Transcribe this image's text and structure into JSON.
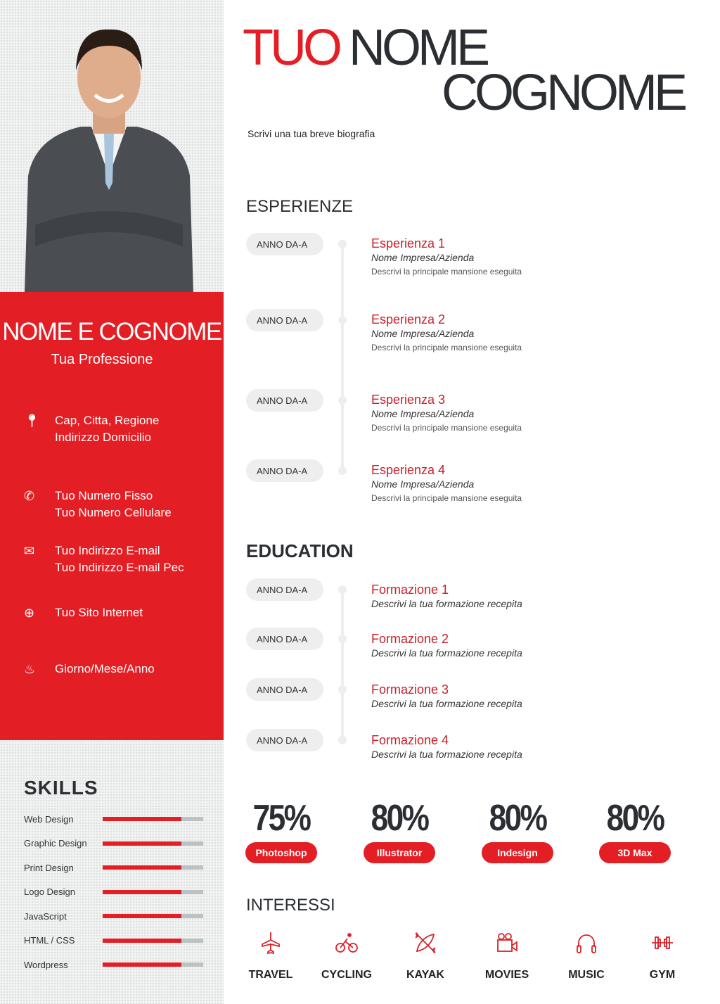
{
  "header": {
    "first": "TUO",
    "second": "NOME",
    "third": "COGNOME",
    "bio": "Scrivi una tua breve biografia"
  },
  "profile": {
    "name": "NOME E COGNOME",
    "profession": "Tua Professione",
    "contacts": [
      {
        "icon": "map-pin-icon",
        "lines": [
          "Cap, Citta, Regione",
          "Indirizzo Domicilio"
        ]
      },
      {
        "icon": "phone-icon",
        "lines": [
          "Tuo Numero Fisso",
          "Tuo Numero Cellulare"
        ]
      },
      {
        "icon": "envelope-icon",
        "lines": [
          "Tuo Indirizzo E-mail",
          "Tuo Indirizzo E-mail Pec"
        ]
      },
      {
        "icon": "globe-icon",
        "lines": [
          "Tuo Sito Internet"
        ]
      },
      {
        "icon": "birthday-cake-icon",
        "lines": [
          "Giorno/Mese/Anno"
        ]
      }
    ]
  },
  "skills": {
    "title": "SKILLS",
    "items": [
      {
        "label": "Web Design",
        "level": 0.78
      },
      {
        "label": "Graphic Design",
        "level": 0.78
      },
      {
        "label": "Print Design",
        "level": 0.78
      },
      {
        "label": "Logo Design",
        "level": 0.78
      },
      {
        "label": "JavaScript",
        "level": 0.78
      },
      {
        "label": "HTML / CSS",
        "level": 0.78
      },
      {
        "label": "Wordpress",
        "level": 0.78
      }
    ]
  },
  "experience": {
    "title": "ESPERIENZE",
    "items": [
      {
        "year": "ANNO DA-A",
        "title": "Esperienza 1",
        "company": "Nome Impresa/Azienda",
        "desc": "Descrivi la principale mansione eseguita"
      },
      {
        "year": "ANNO DA-A",
        "title": "Esperienza 2",
        "company": "Nome Impresa/Azienda",
        "desc": "Descrivi la principale mansione eseguita"
      },
      {
        "year": "ANNO DA-A",
        "title": "Esperienza 3",
        "company": "Nome Impresa/Azienda",
        "desc": "Descrivi la principale mansione eseguita"
      },
      {
        "year": "ANNO DA-A",
        "title": "Esperienza 4",
        "company": "Nome Impresa/Azienda",
        "desc": "Descrivi la principale mansione eseguita"
      }
    ]
  },
  "education": {
    "title": "EDUCATION",
    "items": [
      {
        "year": "ANNO DA-A",
        "title": "Formazione 1",
        "desc": "Descrivi la tua formazione recepita"
      },
      {
        "year": "ANNO DA-A",
        "title": "Formazione 2",
        "desc": "Descrivi la tua formazione recepita"
      },
      {
        "year": "ANNO DA-A",
        "title": "Formazione 3",
        "desc": "Descrivi la tua formazione recepita"
      },
      {
        "year": "ANNO DA-A",
        "title": "Formazione 4",
        "desc": "Descrivi la tua formazione recepita"
      }
    ]
  },
  "software": [
    {
      "value": "75%",
      "label": "Photoshop"
    },
    {
      "value": "80%",
      "label": "Illustrator"
    },
    {
      "value": "80%",
      "label": "Indesign"
    },
    {
      "value": "80%",
      "label": "3D Max"
    }
  ],
  "interests": {
    "title": "INTERESSI",
    "items": [
      {
        "icon": "airplane-icon",
        "label": "TRAVEL"
      },
      {
        "icon": "bicycle-icon",
        "label": "CYCLING"
      },
      {
        "icon": "kayak-icon",
        "label": "KAYAK"
      },
      {
        "icon": "movie-camera-icon",
        "label": "MOVIES"
      },
      {
        "icon": "headphones-icon",
        "label": "MUSIC"
      },
      {
        "icon": "dumbbell-icon",
        "label": "GYM"
      }
    ]
  },
  "colors": {
    "accent": "#e31e24",
    "dark": "#2b2f33",
    "sidebar": "#f1f2f2"
  }
}
